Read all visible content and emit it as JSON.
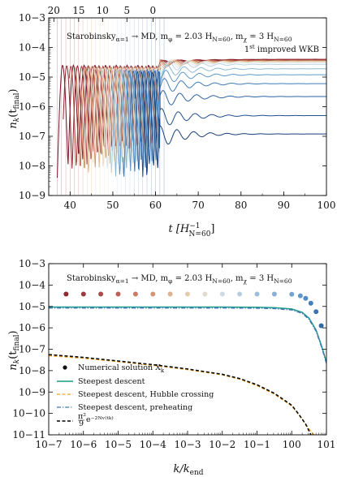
{
  "chart_data": [
    {
      "type": "line",
      "title": "Starobinskyα=1 → MD, mφ = 2.03 HN=60, mχ = 3 HN=60",
      "subtitle": "1st improved WKB",
      "xlabel": "t [H⁻¹ N=60]",
      "ylabel": "nk(tfinal)",
      "xlim": [
        35,
        100
      ],
      "ylim_log10": [
        -9,
        -3
      ],
      "yscale": "log",
      "grid": false,
      "x_ticks": [
        "40",
        "50",
        "60",
        "70",
        "80",
        "90",
        "100"
      ],
      "y_ticks": [
        "10−9",
        "10−8",
        "10−7",
        "10−6",
        "10−5",
        "10−4",
        "10−3"
      ],
      "top_axis_label_values": [
        "20",
        "15",
        "10",
        "5",
        "0"
      ],
      "top_axis_positions_t": [
        36.2,
        42.0,
        47.6,
        53.3,
        59.4
      ],
      "series": [
        {
          "color": "#7a1428",
          "final_value": 4e-05
        },
        {
          "color": "#8e2a30",
          "final_value": 3.9e-05
        },
        {
          "color": "#a8433c",
          "final_value": 3.8e-05
        },
        {
          "color": "#c0704f",
          "final_value": 3.6e-05
        },
        {
          "color": "#d39a72",
          "final_value": 3.5e-05
        },
        {
          "color": "#e1bf98",
          "final_value": 3.4e-05
        },
        {
          "color": "#e9dcc2",
          "final_value": 3.3e-05
        },
        {
          "color": "#dde5e3",
          "final_value": 3.1e-05
        },
        {
          "color": "#b9d3df",
          "final_value": 2.7e-05
        },
        {
          "color": "#8cb8d4",
          "final_value": 1.9e-05
        },
        {
          "color": "#5f98c6",
          "final_value": 1.2e-05
        },
        {
          "color": "#3f7bb7",
          "final_value": 6e-06
        },
        {
          "color": "#2c62a3",
          "final_value": 2.2e-06
        },
        {
          "color": "#1f4f8e",
          "final_value": 5e-07
        },
        {
          "color": "#163f79",
          "final_value": 1.2e-07
        }
      ]
    },
    {
      "type": "scatter",
      "title": "Starobinskyα=1 → MD, mφ = 2.03 HN=60, mχ = 3 HN=60",
      "xlabel": "k/kend",
      "ylabel": "nk(tfinal)",
      "xscale": "log",
      "yscale": "log",
      "xlim_log10": [
        -7,
        1
      ],
      "ylim_log10": [
        -11,
        -3
      ],
      "grid": false,
      "x_ticks": [
        "10−7",
        "10−6",
        "10−5",
        "10−4",
        "10−3",
        "10−2",
        "10−1",
        "100",
        "101"
      ],
      "y_ticks": [
        "10−11",
        "10−10",
        "10−9",
        "10−8",
        "10−7",
        "10−6",
        "10−5",
        "10−4",
        "10−3"
      ],
      "legend_position": "bottom-left",
      "points": {
        "log10_k": [
          -6.5,
          -6.0,
          -5.5,
          -5.0,
          -4.5,
          -4.0,
          -3.5,
          -3.0,
          -2.5,
          -2.0,
          -1.5,
          -1.0,
          -0.5,
          0.0,
          0.25,
          0.4,
          0.55,
          0.7,
          0.85
        ],
        "log10_n": [
          -4.42,
          -4.42,
          -4.42,
          -4.42,
          -4.42,
          -4.42,
          -4.42,
          -4.42,
          -4.42,
          -4.42,
          -4.42,
          -4.42,
          -4.42,
          -4.43,
          -4.5,
          -4.62,
          -4.85,
          -5.25,
          -5.9
        ],
        "colors": [
          "#8e2a30",
          "#9c3a3b",
          "#ab4b48",
          "#bb6052",
          "#ca7a62",
          "#d69675",
          "#ddb28f",
          "#e3cbae",
          "#e0dccd",
          "#cfdae3",
          "#b7cde1",
          "#9dbfdd",
          "#87b1d7",
          "#73a3d0",
          "#6098c9",
          "#528cc2",
          "#4580b9",
          "#3a75b1",
          "#316aa9"
        ]
      },
      "series": [
        {
          "name": "Steepest descent",
          "color": "#1a9a8a",
          "style": "solid",
          "log10_k": [
            -7,
            -6,
            -5,
            -4,
            -3,
            -2,
            -1,
            -0.5,
            0,
            0.3,
            0.5,
            0.7,
            0.85,
            1.0
          ],
          "log10_n": [
            -5.03,
            -5.03,
            -5.03,
            -5.03,
            -5.03,
            -5.03,
            -5.04,
            -5.06,
            -5.12,
            -5.28,
            -5.55,
            -6.1,
            -6.8,
            -7.6
          ]
        },
        {
          "name": "Steepest descent, Hubble crossing",
          "color": "#f0a020",
          "style": "dashed",
          "log10_k": [
            -7,
            -6,
            -5,
            -4,
            -3,
            -2,
            -1.5,
            -1,
            -0.5,
            0,
            0.2,
            0.4,
            0.55,
            0.7
          ],
          "log10_n": [
            -7.3,
            -7.42,
            -7.58,
            -7.75,
            -7.95,
            -8.2,
            -8.4,
            -8.7,
            -9.1,
            -9.65,
            -10.05,
            -10.5,
            -10.85,
            -11.1
          ]
        },
        {
          "name": "Steepest descent, preheating",
          "color": "#3f78b5",
          "style": "dashdot",
          "log10_k": [
            -7,
            -6,
            -5,
            -4,
            -3,
            -2,
            -1,
            -0.5,
            0,
            0.3,
            0.5,
            0.7,
            0.85,
            1.0
          ],
          "log10_n": [
            -5.07,
            -5.07,
            -5.07,
            -5.07,
            -5.07,
            -5.07,
            -5.08,
            -5.1,
            -5.16,
            -5.32,
            -5.6,
            -6.15,
            -6.85,
            -7.65
          ]
        },
        {
          "name": "π²/9 e⁻²ᴺᵛ(tk)",
          "color": "#000000",
          "style": "dashed",
          "log10_k": [
            -7,
            -6,
            -5,
            -4,
            -3,
            -2,
            -1.5,
            -1,
            -0.5,
            0,
            0.2,
            0.4,
            0.55
          ],
          "log10_n": [
            -7.25,
            -7.38,
            -7.55,
            -7.72,
            -7.92,
            -8.17,
            -8.37,
            -8.66,
            -9.06,
            -9.62,
            -10.03,
            -10.5,
            -11.0
          ]
        }
      ],
      "legend": [
        "Numerical solution Xk",
        "Steepest descent",
        "Steepest descent, Hubble crossing",
        "Steepest descent, preheating",
        "π²/9 e⁻²ᴺᵛ(tk)"
      ]
    }
  ],
  "labels": {
    "top": {
      "title_main": "Starobinsky",
      "title_sub": "α=1",
      "title_rest": " → MD, m",
      "mphi_sub": "φ",
      "mphi_rest": " = 2.03 H",
      "h_sub1": "N=60",
      "mchi_lead": ", m",
      "mchi_sub": "χ",
      "mchi_rest": " = 3 H",
      "h_sub2": "N=60",
      "method_sup": "st",
      "method_one": "1",
      "method_rest": " improved WKB",
      "xlabel_main": "t [H",
      "xlabel_sup": "−1",
      "xlabel_sub": "N=60",
      "xlabel_close": "]",
      "ylabel_main": "n",
      "ylabel_k": "k",
      "ylabel_t": "(t",
      "ylabel_tsub": "final",
      "ylabel_close": ")"
    },
    "bottom": {
      "xlabel_k": "k/k",
      "xlabel_sub": "end",
      "legend_numerical": "Numerical solution X",
      "legend_numerical_sub": "k",
      "legend_sd": "Steepest descent",
      "legend_hc": "Steepest descent, Hubble crossing",
      "legend_pre": "Steepest descent, preheating",
      "legend_approx_frac": "π²",
      "legend_approx_den": "9",
      "legend_approx_rest": "e⁻²ᴺᵛ⁽ᵗᵏ⁾"
    }
  }
}
